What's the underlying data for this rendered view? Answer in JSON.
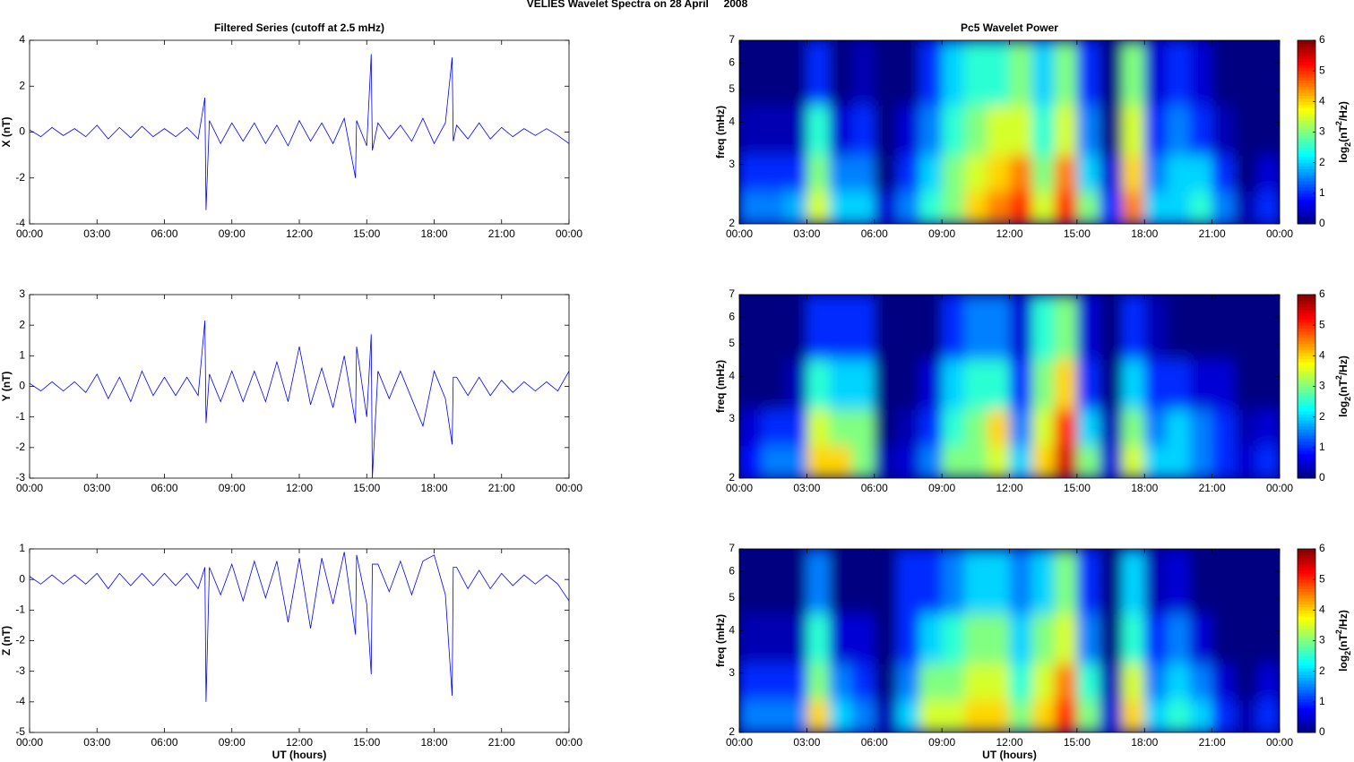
{
  "title": "VELIES Wavelet Spectra on 28 April     2008",
  "chart_data": [
    {
      "type": "line",
      "title": "Filtered Series (cutoff at 2.5 mHz)",
      "ylabel": "X (nT)",
      "color": "#0000ff",
      "x": [
        0,
        0.5,
        1,
        1.5,
        2,
        2.5,
        3,
        3.5,
        4,
        4.5,
        5,
        5.5,
        6,
        6.5,
        7,
        7.5,
        7.8,
        7.85,
        8,
        8.5,
        9,
        9.5,
        10,
        10.5,
        11,
        11.5,
        12,
        12.5,
        13,
        13.5,
        14,
        14.5,
        14.55,
        15,
        15.2,
        15.25,
        15.5,
        16,
        16.5,
        17,
        17.5,
        18,
        18.5,
        18.8,
        18.85,
        19,
        19.5,
        20,
        20.5,
        21,
        21.5,
        22,
        22.5,
        23,
        23.5,
        24
      ],
      "values": [
        0.1,
        -0.2,
        0.2,
        -0.15,
        0.15,
        -0.2,
        0.3,
        -0.3,
        0.2,
        -0.25,
        0.25,
        -0.2,
        0.15,
        -0.2,
        0.2,
        -0.3,
        1.5,
        -3.4,
        0.5,
        -0.5,
        0.4,
        -0.4,
        0.4,
        -0.5,
        0.3,
        -0.6,
        0.5,
        -0.4,
        0.4,
        -0.5,
        0.6,
        -2.0,
        0.5,
        -0.6,
        3.4,
        -0.8,
        0.4,
        -0.3,
        0.3,
        -0.4,
        0.6,
        -0.5,
        0.4,
        3.25,
        -0.4,
        0.3,
        -0.3,
        0.4,
        -0.3,
        0.2,
        -0.2,
        0.15,
        -0.15,
        0.15,
        -0.15,
        -0.5
      ],
      "xlim": [
        0,
        24
      ],
      "xticks": [
        {
          "value": 0,
          "label": "00:00"
        },
        {
          "value": 3,
          "label": "03:00"
        },
        {
          "value": 6,
          "label": "06:00"
        },
        {
          "value": 9,
          "label": "09:00"
        },
        {
          "value": 12,
          "label": "12:00"
        },
        {
          "value": 15,
          "label": "15:00"
        },
        {
          "value": 18,
          "label": "18:00"
        },
        {
          "value": 21,
          "label": "21:00"
        },
        {
          "value": 24,
          "label": "00:00"
        }
      ],
      "ylim": [
        -4,
        4
      ],
      "yticks": [
        -4,
        -2,
        0,
        2,
        4
      ]
    },
    {
      "type": "heatmap",
      "title": "Pc5 Wavelet Power",
      "ylabel": "freq (mHz)",
      "colormap": "jet",
      "yscale": "log",
      "xbins": [
        0,
        1,
        2,
        3,
        4,
        5,
        6,
        7,
        8,
        9,
        10,
        11,
        12,
        13,
        14,
        15,
        16,
        17,
        18,
        19,
        20,
        21,
        22,
        23,
        24
      ],
      "ybins": [
        2,
        2.5,
        3.2,
        4.5,
        7
      ],
      "z": [
        [
          1.5,
          1.5,
          1.8,
          3.5,
          2,
          2,
          0.5,
          1.5,
          2.5,
          3,
          4,
          4.5,
          5,
          3.5,
          5,
          3,
          1,
          4.5,
          2,
          2,
          2.5,
          1.5,
          0.3,
          1
        ],
        [
          1,
          1,
          1,
          3,
          1.5,
          1.5,
          0,
          1,
          2,
          3,
          3.5,
          4,
          4.5,
          3,
          4.5,
          2,
          0.5,
          4,
          1.5,
          2,
          2,
          1,
          0,
          0.5
        ],
        [
          0.3,
          0.3,
          0.3,
          2.5,
          0.5,
          1,
          0,
          0.5,
          1.5,
          2.5,
          3,
          3.5,
          3.5,
          2.5,
          3.5,
          1.5,
          0,
          3.5,
          1,
          1.5,
          1,
          0.3,
          0,
          0
        ],
        [
          0,
          0,
          0,
          1,
          0,
          0.3,
          0,
          0,
          1,
          2,
          2.5,
          2.5,
          3,
          2,
          3,
          1,
          0,
          3,
          0.5,
          1,
          0.5,
          0,
          0,
          0
        ]
      ],
      "xlim": [
        0,
        24
      ],
      "xticks": [
        {
          "value": 0,
          "label": "00:00"
        },
        {
          "value": 3,
          "label": "03:00"
        },
        {
          "value": 6,
          "label": "06:00"
        },
        {
          "value": 9,
          "label": "09:00"
        },
        {
          "value": 12,
          "label": "12:00"
        },
        {
          "value": 15,
          "label": "15:00"
        },
        {
          "value": 18,
          "label": "18:00"
        },
        {
          "value": 21,
          "label": "21:00"
        },
        {
          "value": 24,
          "label": "00:00"
        }
      ],
      "ylim": [
        2,
        7
      ],
      "yticks": [
        2,
        3,
        4,
        5,
        6,
        7
      ],
      "zlim": [
        0,
        6
      ],
      "zticks": [
        0,
        1,
        2,
        3,
        4,
        5,
        6
      ],
      "colorbar_label": [
        "log",
        "2",
        "(nT",
        "2",
        "/Hz)"
      ]
    },
    {
      "type": "line",
      "ylabel": "Y (nT)",
      "color": "#0000ff",
      "x": [
        0,
        0.5,
        1,
        1.5,
        2,
        2.5,
        3,
        3.5,
        4,
        4.5,
        5,
        5.5,
        6,
        6.5,
        7,
        7.5,
        7.8,
        7.85,
        8,
        8.5,
        9,
        9.5,
        10,
        10.5,
        11,
        11.5,
        12,
        12.5,
        13,
        13.5,
        14,
        14.5,
        14.55,
        15,
        15.2,
        15.25,
        15.5,
        16,
        16.5,
        17,
        17.5,
        18,
        18.5,
        18.8,
        18.85,
        19,
        19.5,
        20,
        20.5,
        21,
        21.5,
        22,
        22.5,
        23,
        23.5,
        24
      ],
      "values": [
        0.1,
        -0.15,
        0.15,
        -0.15,
        0.15,
        -0.2,
        0.4,
        -0.4,
        0.3,
        -0.5,
        0.5,
        -0.3,
        0.3,
        -0.3,
        0.3,
        -0.3,
        2.15,
        -1.2,
        0.4,
        -0.5,
        0.5,
        -0.5,
        0.5,
        -0.5,
        0.8,
        -0.5,
        1.3,
        -0.6,
        0.6,
        -0.7,
        1.0,
        -1.2,
        1.3,
        -1.0,
        1.7,
        -3.0,
        0.5,
        -0.4,
        0.5,
        -0.4,
        -1.3,
        0.5,
        -0.4,
        -1.9,
        0.3,
        0.3,
        -0.3,
        0.3,
        -0.3,
        0.2,
        -0.2,
        0.15,
        -0.15,
        0.15,
        -0.15,
        0.5
      ],
      "xlim": [
        0,
        24
      ],
      "xticks": [
        {
          "value": 0,
          "label": "00:00"
        },
        {
          "value": 3,
          "label": "03:00"
        },
        {
          "value": 6,
          "label": "06:00"
        },
        {
          "value": 9,
          "label": "09:00"
        },
        {
          "value": 12,
          "label": "12:00"
        },
        {
          "value": 15,
          "label": "15:00"
        },
        {
          "value": 18,
          "label": "18:00"
        },
        {
          "value": 21,
          "label": "21:00"
        },
        {
          "value": 24,
          "label": "00:00"
        }
      ],
      "ylim": [
        -3,
        3
      ],
      "yticks": [
        -3,
        -2,
        -1,
        0,
        1,
        2,
        3
      ]
    },
    {
      "type": "heatmap",
      "ylabel": "freq (mHz)",
      "colormap": "jet",
      "yscale": "log",
      "xbins": [
        0,
        1,
        2,
        3,
        4,
        5,
        6,
        7,
        8,
        9,
        10,
        11,
        12,
        13,
        14,
        15,
        16,
        17,
        18,
        19,
        20,
        21,
        22,
        23,
        24
      ],
      "ybins": [
        2,
        2.5,
        3.2,
        4.5,
        7
      ],
      "z": [
        [
          0.8,
          1.5,
          1.5,
          4,
          4,
          3,
          0.3,
          0.5,
          1.5,
          3,
          3,
          3.5,
          2,
          4,
          5.5,
          3,
          0.5,
          3.5,
          2,
          2,
          1.5,
          1,
          0.5,
          1
        ],
        [
          0.5,
          1,
          1,
          3.5,
          3,
          3,
          0,
          0.3,
          1,
          2.5,
          3,
          4,
          1.5,
          3.5,
          5,
          2,
          0.3,
          3,
          1.5,
          2,
          1.5,
          1,
          0.3,
          0.5
        ],
        [
          0,
          0,
          0.3,
          2.5,
          2,
          2,
          0,
          0,
          0.5,
          2,
          2.5,
          2.5,
          1,
          3,
          4,
          1,
          0,
          2,
          1,
          1,
          0.5,
          0.5,
          0,
          0
        ],
        [
          0,
          0,
          0,
          1,
          1,
          1,
          0,
          0,
          0,
          1,
          1.5,
          1.5,
          0.5,
          2.5,
          3,
          0.5,
          0,
          1,
          0.3,
          0,
          0,
          0,
          0,
          0
        ]
      ],
      "xlim": [
        0,
        24
      ],
      "xticks": [
        {
          "value": 0,
          "label": "00:00"
        },
        {
          "value": 3,
          "label": "03:00"
        },
        {
          "value": 6,
          "label": "06:00"
        },
        {
          "value": 9,
          "label": "09:00"
        },
        {
          "value": 12,
          "label": "12:00"
        },
        {
          "value": 15,
          "label": "15:00"
        },
        {
          "value": 18,
          "label": "18:00"
        },
        {
          "value": 21,
          "label": "21:00"
        },
        {
          "value": 24,
          "label": "00:00"
        }
      ],
      "ylim": [
        2,
        7
      ],
      "yticks": [
        2,
        3,
        4,
        5,
        6,
        7
      ],
      "zlim": [
        0,
        6
      ],
      "zticks": [
        0,
        1,
        2,
        3,
        4,
        5,
        6
      ],
      "colorbar_label": [
        "log",
        "2",
        "(nT",
        "2",
        "/Hz)"
      ]
    },
    {
      "type": "line",
      "ylabel": "Z (nT)",
      "xlabel": "UT (hours)",
      "color": "#0000ff",
      "x": [
        0,
        0.5,
        1,
        1.5,
        2,
        2.5,
        3,
        3.5,
        4,
        4.5,
        5,
        5.5,
        6,
        6.5,
        7,
        7.5,
        7.8,
        7.85,
        8,
        8.5,
        9,
        9.5,
        10,
        10.5,
        11,
        11.5,
        12,
        12.5,
        13,
        13.5,
        14,
        14.5,
        14.55,
        15,
        15.2,
        15.25,
        15.5,
        16,
        16.5,
        17,
        17.5,
        18,
        18.5,
        18.8,
        18.85,
        19,
        19.5,
        20,
        20.5,
        21,
        21.5,
        22,
        22.5,
        23,
        23.5,
        24
      ],
      "values": [
        0.1,
        -0.15,
        0.15,
        -0.15,
        0.15,
        -0.15,
        0.2,
        -0.3,
        0.2,
        -0.2,
        0.2,
        -0.2,
        0.2,
        -0.2,
        0.2,
        -0.3,
        0.4,
        -4.0,
        0.4,
        -0.5,
        0.5,
        -0.7,
        0.6,
        -0.6,
        0.6,
        -1.4,
        0.7,
        -1.6,
        0.7,
        -0.8,
        0.9,
        -1.8,
        0.8,
        -0.8,
        -3.1,
        0.5,
        0.5,
        -0.4,
        0.6,
        -0.5,
        0.6,
        0.8,
        -0.5,
        -3.8,
        0.4,
        0.4,
        -0.3,
        0.3,
        -0.3,
        0.2,
        -0.2,
        0.15,
        -0.15,
        0.15,
        -0.15,
        -0.7
      ],
      "xlim": [
        0,
        24
      ],
      "xticks": [
        {
          "value": 0,
          "label": "00:00"
        },
        {
          "value": 3,
          "label": "03:00"
        },
        {
          "value": 6,
          "label": "06:00"
        },
        {
          "value": 9,
          "label": "09:00"
        },
        {
          "value": 12,
          "label": "12:00"
        },
        {
          "value": 15,
          "label": "15:00"
        },
        {
          "value": 18,
          "label": "18:00"
        },
        {
          "value": 21,
          "label": "21:00"
        },
        {
          "value": 24,
          "label": "00:00"
        }
      ],
      "ylim": [
        -5,
        1
      ],
      "yticks": [
        -5,
        -4,
        -3,
        -2,
        -1,
        0,
        1
      ]
    },
    {
      "type": "heatmap",
      "ylabel": "freq (mHz)",
      "xlabel": "UT (hours)",
      "colormap": "jet",
      "yscale": "log",
      "xbins": [
        0,
        1,
        2,
        3,
        4,
        5,
        6,
        7,
        8,
        9,
        10,
        11,
        12,
        13,
        14,
        15,
        16,
        17,
        18,
        19,
        20,
        21,
        22,
        23,
        24
      ],
      "ybins": [
        2,
        2.5,
        3.2,
        4.5,
        7
      ],
      "z": [
        [
          1.5,
          1.5,
          1.5,
          4,
          2,
          1.5,
          0.3,
          2,
          3.5,
          3.5,
          4,
          4,
          3,
          4,
          5,
          3,
          0.5,
          4,
          2,
          2.5,
          2,
          1,
          0.3,
          1
        ],
        [
          1,
          1,
          1,
          3,
          1.5,
          1,
          0,
          1.5,
          3,
          3,
          3.5,
          3.5,
          2.5,
          3.5,
          4.5,
          2.5,
          0.3,
          3.5,
          1.5,
          2,
          1.5,
          0.5,
          0,
          0.5
        ],
        [
          0.3,
          0.3,
          0.3,
          2.5,
          0.5,
          0.5,
          0,
          1,
          2,
          2.5,
          3,
          3,
          2,
          3,
          3.5,
          1.5,
          0,
          2.5,
          1,
          1.5,
          0.5,
          0,
          0,
          0
        ],
        [
          0,
          0,
          0,
          1.5,
          0,
          0,
          0,
          1,
          1,
          1.5,
          2,
          2,
          1.5,
          2,
          3,
          1,
          0,
          2,
          0.3,
          0.5,
          0,
          0,
          0,
          0
        ]
      ],
      "xlim": [
        0,
        24
      ],
      "xticks": [
        {
          "value": 0,
          "label": "00:00"
        },
        {
          "value": 3,
          "label": "03:00"
        },
        {
          "value": 6,
          "label": "06:00"
        },
        {
          "value": 9,
          "label": "09:00"
        },
        {
          "value": 12,
          "label": "12:00"
        },
        {
          "value": 15,
          "label": "15:00"
        },
        {
          "value": 18,
          "label": "18:00"
        },
        {
          "value": 21,
          "label": "21:00"
        },
        {
          "value": 24,
          "label": "00:00"
        }
      ],
      "ylim": [
        2,
        7
      ],
      "yticks": [
        2,
        3,
        4,
        5,
        6,
        7
      ],
      "zlim": [
        0,
        6
      ],
      "zticks": [
        0,
        1,
        2,
        3,
        4,
        5,
        6
      ],
      "colorbar_label": [
        "log",
        "2",
        "(nT",
        "2",
        "/Hz)"
      ]
    }
  ]
}
